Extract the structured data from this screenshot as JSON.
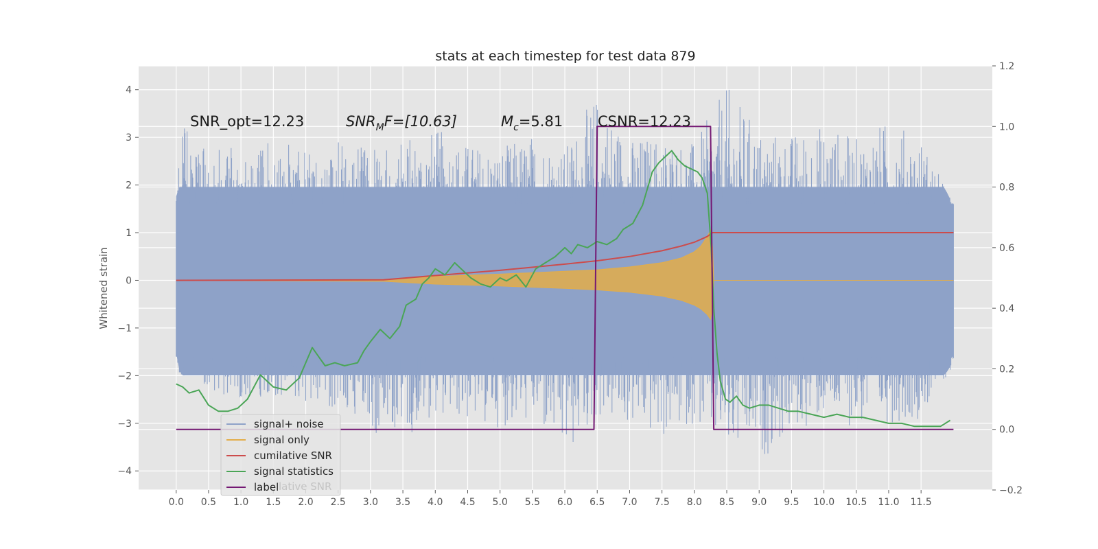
{
  "chart_data": {
    "type": "line",
    "title": "stats at each timestep for test data 879",
    "ylabel": "Whitened strain",
    "x_ticks": [
      "0.0",
      "0.5",
      "1.0",
      "1.5",
      "2.0",
      "2.5",
      "3.0",
      "3.5",
      "4.0",
      "4.5",
      "5.0",
      "5.5",
      "6.0",
      "6.5",
      "7.0",
      "7.5",
      "8.0",
      "8.5",
      "9.0",
      "9.5",
      "10.0",
      "10.5",
      "11.0",
      "11.5"
    ],
    "xlim": [
      -0.58,
      12.6
    ],
    "ylim_left": [
      -4.4,
      4.5
    ],
    "ylim_right": [
      -0.2,
      1.2
    ],
    "y_ticks_left": [
      "4",
      "3",
      "2",
      "1",
      "0",
      "−1",
      "−2",
      "−3",
      "−4"
    ],
    "y_ticks_right": [
      "1.2",
      "1.0",
      "0.8",
      "0.6",
      "0.4",
      "0.2",
      "0.0",
      "−0.2"
    ],
    "grid": true,
    "legend_position": "lower-left",
    "annotations": {
      "snr_opt": "SNR_opt=12.23",
      "snr_mf_base": "SNR",
      "snr_mf_sub": "M",
      "snr_mf_rest": "F=[10.63]",
      "mc_base": "M",
      "mc_sub": "c",
      "mc_rest": "=5.81",
      "csnr": "CSNR=12.23"
    },
    "series": [
      {
        "name": "signal+ noise",
        "axis": "left",
        "color": "#8ea2c8",
        "x_range": [
          0.0,
          12.0
        ],
        "envelope": [
          [
            0.0,
            -1.6,
            1.8
          ],
          [
            0.1,
            -2.4,
            3.6
          ],
          [
            0.5,
            -2.3,
            2.7
          ],
          [
            1.0,
            -2.5,
            2.9
          ],
          [
            1.5,
            -2.4,
            2.9
          ],
          [
            2.0,
            -2.6,
            2.8
          ],
          [
            2.5,
            -2.7,
            3.0
          ],
          [
            3.0,
            -3.2,
            2.8
          ],
          [
            3.5,
            -3.4,
            3.0
          ],
          [
            4.0,
            -2.8,
            3.2
          ],
          [
            4.5,
            -3.0,
            2.9
          ],
          [
            5.0,
            -3.1,
            2.8
          ],
          [
            5.5,
            -3.0,
            3.1
          ],
          [
            6.0,
            -3.9,
            2.8
          ],
          [
            6.5,
            -2.9,
            4.0
          ],
          [
            7.0,
            -3.1,
            3.0
          ],
          [
            7.5,
            -3.4,
            3.1
          ],
          [
            8.0,
            -3.0,
            2.9
          ],
          [
            8.5,
            -3.8,
            4.1
          ],
          [
            9.0,
            -3.8,
            3.2
          ],
          [
            9.5,
            -3.3,
            3.1
          ],
          [
            10.0,
            -2.9,
            3.3
          ],
          [
            10.5,
            -3.1,
            3.0
          ],
          [
            11.0,
            -3.0,
            3.4
          ],
          [
            11.5,
            -2.9,
            3.0
          ],
          [
            12.0,
            -1.8,
            1.6
          ]
        ]
      },
      {
        "name": "signal only",
        "axis": "left",
        "color": "#e3ad49",
        "envelope": [
          [
            0.0,
            0.0,
            0.0
          ],
          [
            3.2,
            -0.02,
            0.02
          ],
          [
            4.0,
            -0.08,
            0.08
          ],
          [
            5.0,
            -0.12,
            0.13
          ],
          [
            6.0,
            -0.17,
            0.19
          ],
          [
            6.5,
            -0.2,
            0.22
          ],
          [
            7.0,
            -0.25,
            0.28
          ],
          [
            7.5,
            -0.33,
            0.37
          ],
          [
            7.8,
            -0.42,
            0.47
          ],
          [
            8.0,
            -0.52,
            0.6
          ],
          [
            8.1,
            -0.6,
            0.72
          ],
          [
            8.2,
            -0.72,
            0.92
          ],
          [
            8.25,
            -0.82,
            1.05
          ],
          [
            8.28,
            -0.55,
            0.7
          ],
          [
            8.3,
            0.0,
            0.0
          ],
          [
            12.0,
            0.0,
            0.0
          ]
        ]
      },
      {
        "name": "cumilative SNR",
        "axis": "left",
        "color": "#cc4c4c",
        "x": [
          0.0,
          3.2,
          4.0,
          5.0,
          6.0,
          6.5,
          7.0,
          7.5,
          7.8,
          8.0,
          8.1,
          8.2,
          8.28,
          8.3,
          12.0
        ],
        "y": [
          0.0,
          0.01,
          0.1,
          0.21,
          0.34,
          0.41,
          0.5,
          0.62,
          0.72,
          0.8,
          0.86,
          0.92,
          1.0,
          1.0,
          1.0
        ]
      },
      {
        "name": "signal statistics",
        "axis": "right",
        "color": "#4aa556",
        "x": [
          0.0,
          0.1,
          0.2,
          0.35,
          0.5,
          0.65,
          0.8,
          0.95,
          1.1,
          1.3,
          1.5,
          1.7,
          1.9,
          2.0,
          2.1,
          2.2,
          2.3,
          2.45,
          2.6,
          2.8,
          2.9,
          3.0,
          3.15,
          3.3,
          3.45,
          3.55,
          3.7,
          3.8,
          3.9,
          4.0,
          4.15,
          4.3,
          4.4,
          4.55,
          4.7,
          4.85,
          5.0,
          5.1,
          5.25,
          5.4,
          5.55,
          5.7,
          5.85,
          6.0,
          6.1,
          6.2,
          6.35,
          6.5,
          6.65,
          6.8,
          6.9,
          7.05,
          7.2,
          7.35,
          7.45,
          7.55,
          7.65,
          7.75,
          7.85,
          7.95,
          8.05,
          8.12,
          8.2,
          8.26,
          8.3,
          8.35,
          8.4,
          8.48,
          8.55,
          8.65,
          8.75,
          8.85,
          9.0,
          9.15,
          9.3,
          9.45,
          9.6,
          9.8,
          10.0,
          10.2,
          10.4,
          10.6,
          10.8,
          11.0,
          11.2,
          11.4,
          11.6,
          11.8,
          11.95
        ],
        "y": [
          0.15,
          0.14,
          0.12,
          0.13,
          0.08,
          0.06,
          0.06,
          0.07,
          0.1,
          0.18,
          0.14,
          0.13,
          0.17,
          0.22,
          0.27,
          0.24,
          0.21,
          0.22,
          0.21,
          0.22,
          0.26,
          0.29,
          0.33,
          0.3,
          0.34,
          0.41,
          0.43,
          0.48,
          0.5,
          0.53,
          0.51,
          0.55,
          0.53,
          0.5,
          0.48,
          0.47,
          0.5,
          0.49,
          0.51,
          0.47,
          0.53,
          0.55,
          0.57,
          0.6,
          0.58,
          0.61,
          0.6,
          0.62,
          0.61,
          0.63,
          0.66,
          0.68,
          0.74,
          0.85,
          0.88,
          0.9,
          0.92,
          0.89,
          0.87,
          0.86,
          0.85,
          0.83,
          0.78,
          0.6,
          0.4,
          0.25,
          0.16,
          0.1,
          0.09,
          0.11,
          0.08,
          0.07,
          0.08,
          0.08,
          0.07,
          0.06,
          0.06,
          0.05,
          0.04,
          0.05,
          0.04,
          0.04,
          0.03,
          0.02,
          0.02,
          0.01,
          0.01,
          0.01,
          0.03
        ]
      },
      {
        "name": "label",
        "axis": "right",
        "color": "#741873",
        "x": [
          0.0,
          6.45,
          6.5,
          8.25,
          8.3,
          12.0
        ],
        "y": [
          0.0,
          0.0,
          1.0,
          1.0,
          0.0,
          0.0
        ]
      }
    ],
    "legend_overlap_text": "lative SNR"
  }
}
